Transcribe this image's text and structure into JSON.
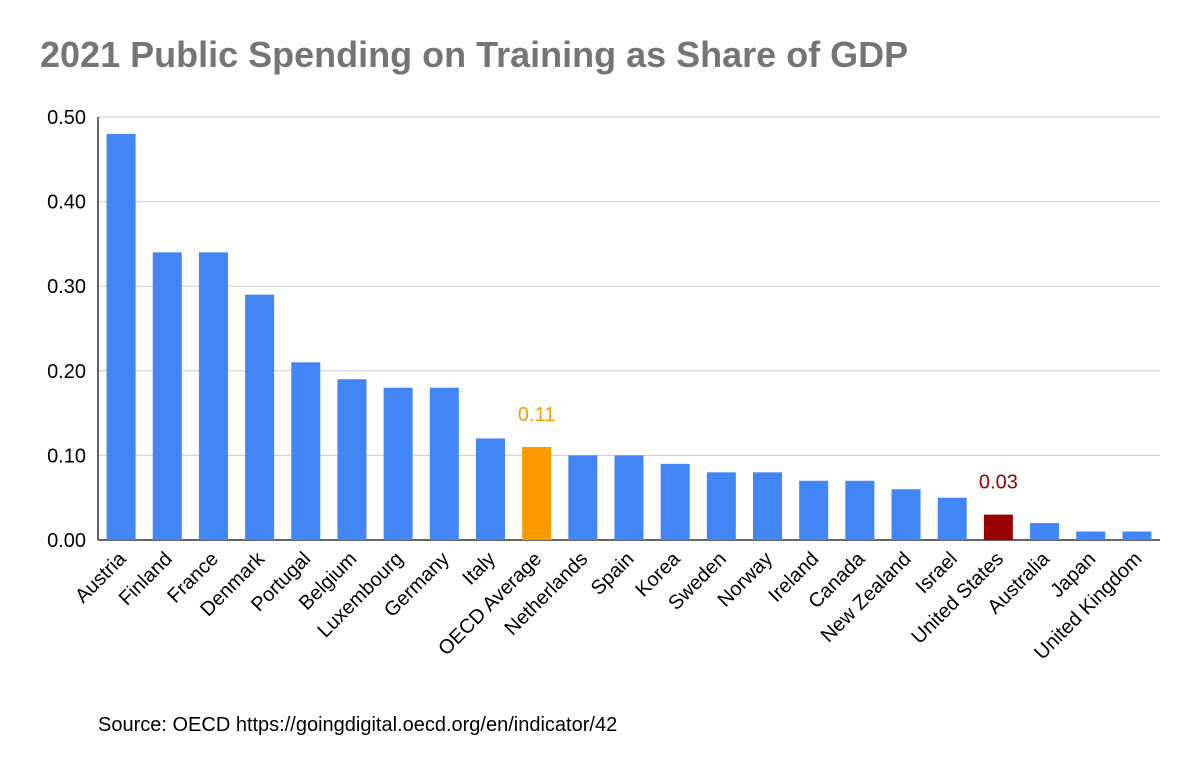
{
  "chart_data": {
    "type": "bar",
    "title": "2021 Public Spending on Training as Share of GDP",
    "categories": [
      "Austria",
      "Finland",
      "France",
      "Denmark",
      "Portugal",
      "Belgium",
      "Luxembourg",
      "Germany",
      "Italy",
      "OECD Average",
      "Netherlands",
      "Spain",
      "Korea",
      "Sweden",
      "Norway",
      "Ireland",
      "Canada",
      "New Zealand",
      "Israel",
      "United States",
      "Australia",
      "Japan",
      "United Kingdom"
    ],
    "values": [
      0.48,
      0.34,
      0.34,
      0.29,
      0.21,
      0.19,
      0.18,
      0.18,
      0.12,
      0.11,
      0.1,
      0.1,
      0.09,
      0.08,
      0.08,
      0.07,
      0.07,
      0.06,
      0.05,
      0.03,
      0.02,
      0.01,
      0.01
    ],
    "ylim": [
      0,
      0.5
    ],
    "yticks": [
      "0.00",
      "0.10",
      "0.20",
      "0.30",
      "0.40",
      "0.50"
    ],
    "grid": true,
    "legend": "none",
    "colors": {
      "default": "#4285f4",
      "highlights": {
        "OECD Average": "#ff9900",
        "United States": "#990000"
      }
    },
    "data_labels": [
      {
        "category": "OECD Average",
        "text": "0.11",
        "color": "#ff9900"
      },
      {
        "category": "United States",
        "text": "0.03",
        "color": "#990000"
      }
    ]
  },
  "source": "Source: OECD https://goingdigital.oecd.org/en/indicator/42"
}
